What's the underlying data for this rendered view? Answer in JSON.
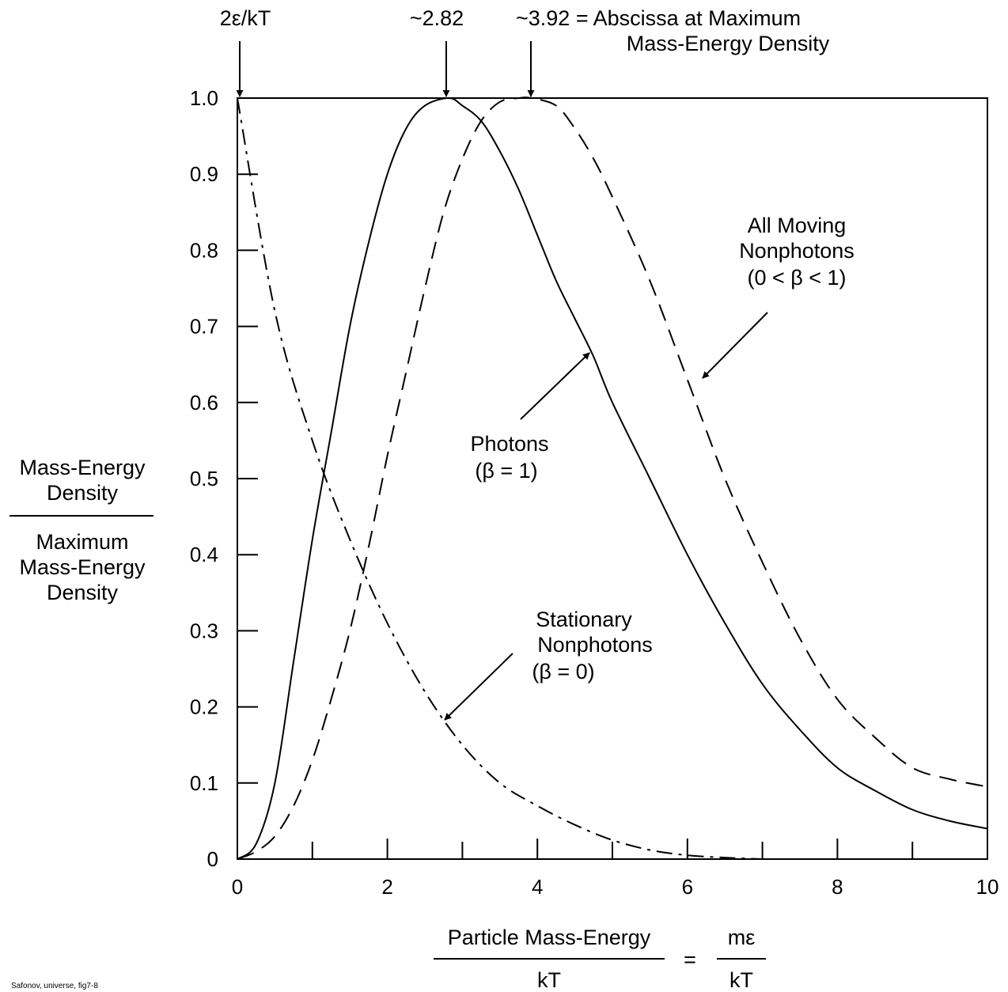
{
  "chart_data": {
    "type": "line",
    "title": "",
    "xlim": [
      0,
      10
    ],
    "ylim": [
      0,
      1.0
    ],
    "x_ticks_major": [
      0,
      2,
      4,
      6,
      8,
      10
    ],
    "x_ticks_minor": [
      1,
      3,
      5,
      7,
      9
    ],
    "y_ticks": [
      0,
      0.1,
      0.2,
      0.3,
      0.4,
      0.5,
      0.6,
      0.7,
      0.8,
      0.9,
      1.0
    ],
    "x_tick_labels": [
      "0",
      "2",
      "4",
      "6",
      "8",
      "10"
    ],
    "y_tick_labels": [
      "0",
      "0.1",
      "0.2",
      "0.3",
      "0.4",
      "0.5",
      "0.6",
      "0.7",
      "0.8",
      "0.9",
      "1.0"
    ],
    "xlabel": {
      "numerator": "Particle Mass-Energy",
      "denominator": "kT",
      "equals": "=",
      "rhs_numerator": "mε",
      "rhs_denominator": "kT"
    },
    "ylabel": {
      "numerator": [
        "Mass-Energy",
        "Density"
      ],
      "denominator": [
        "Maximum",
        "Mass-Energy",
        "Density"
      ]
    },
    "grid": false,
    "legend": "none",
    "series": [
      {
        "style": "solid",
        "x": [
          0,
          0.25,
          0.5,
          0.75,
          1.0,
          1.25,
          1.5,
          1.75,
          2.0,
          2.25,
          2.5,
          2.82,
          3.0,
          3.25,
          3.5,
          3.75,
          4.0,
          4.25,
          4.5,
          4.75,
          5.0,
          5.5,
          6.0,
          6.5,
          7.0,
          7.5,
          8.0,
          8.5,
          9.0,
          9.5,
          10.0
        ],
        "y": [
          0,
          0.02,
          0.1,
          0.26,
          0.42,
          0.56,
          0.7,
          0.81,
          0.9,
          0.96,
          0.99,
          1.0,
          0.99,
          0.97,
          0.93,
          0.88,
          0.82,
          0.76,
          0.71,
          0.66,
          0.6,
          0.5,
          0.4,
          0.31,
          0.23,
          0.17,
          0.12,
          0.09,
          0.065,
          0.05,
          0.04
        ]
      },
      {
        "style": "dashed",
        "x": [
          0,
          0.25,
          0.5,
          0.75,
          1.0,
          1.25,
          1.5,
          1.75,
          2.0,
          2.25,
          2.5,
          2.75,
          3.0,
          3.25,
          3.5,
          3.75,
          3.92,
          4.25,
          4.5,
          4.75,
          5.0,
          5.5,
          6.0,
          6.5,
          7.0,
          7.5,
          8.0,
          8.5,
          9.0,
          9.5,
          10.0
        ],
        "y": [
          0,
          0.01,
          0.03,
          0.07,
          0.13,
          0.21,
          0.3,
          0.41,
          0.53,
          0.64,
          0.75,
          0.85,
          0.92,
          0.97,
          0.995,
          1.0,
          1.0,
          0.99,
          0.96,
          0.92,
          0.87,
          0.76,
          0.63,
          0.5,
          0.39,
          0.29,
          0.21,
          0.16,
          0.12,
          0.105,
          0.095
        ]
      },
      {
        "style": "dash-dot",
        "x": [
          0,
          0.5,
          1.0,
          1.5,
          2.0,
          2.5,
          3.0,
          3.5,
          4.0,
          4.5,
          5.0,
          5.5,
          6.0,
          6.5,
          7.0
        ],
        "y": [
          1.0,
          0.72,
          0.55,
          0.42,
          0.31,
          0.22,
          0.15,
          0.1,
          0.07,
          0.045,
          0.025,
          0.012,
          0.005,
          0.002,
          0.0
        ]
      }
    ],
    "annotations": {
      "top_markers": [
        {
          "x": 0,
          "label": "2ε/kT"
        },
        {
          "x": 2.82,
          "label": "~2.82"
        },
        {
          "x": 3.92,
          "label": "~3.92 = Abscissa at Maximum",
          "label2": "Mass-Energy Density"
        }
      ],
      "curve_labels": [
        {
          "lines": [
            "All Moving",
            "Nonphotons",
            "(0 < β < 1)"
          ]
        },
        {
          "lines": [
            "Photons",
            "(β = 1)"
          ]
        },
        {
          "lines": [
            "Stationary",
            "Nonphotons",
            "(β = 0)"
          ]
        }
      ]
    }
  },
  "footer": "Safonov, universe, fig7-8"
}
